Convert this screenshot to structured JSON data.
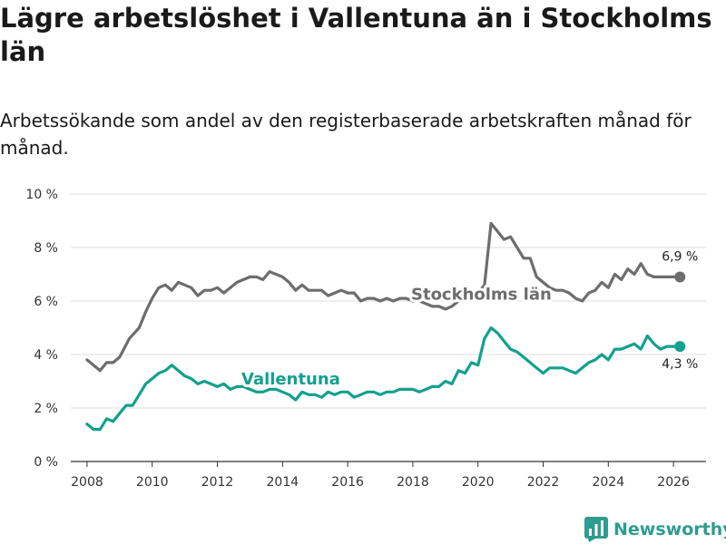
{
  "header": {
    "title": "Lägre arbetslöshet i Vallentuna än i Stockholms län",
    "subtitle": "Arbetssökande som andel av den registerbaserade arbetskraften månad för månad."
  },
  "brand": {
    "name": "Newsworthy",
    "icon": "newsworthy-logo-icon",
    "color": "#2e9c8f"
  },
  "colors": {
    "stockholm": "#6d6d6d",
    "vallentuna": "#13a08f",
    "grid": "#dddddd",
    "axis": "#333333"
  },
  "chart_data": {
    "type": "line",
    "title": "Lägre arbetslöshet i Vallentuna än i Stockholms län",
    "subtitle": "Arbetssökande som andel av den registerbaserade arbetskraften månad för månad.",
    "xlabel": "",
    "ylabel": "",
    "xlim": [
      2007.5,
      2027.0
    ],
    "ylim": [
      0,
      10
    ],
    "grid": true,
    "x_ticks": [
      2008,
      2010,
      2012,
      2014,
      2016,
      2018,
      2020,
      2022,
      2024,
      2026
    ],
    "x_tick_labels": [
      "2008",
      "2010",
      "2012",
      "2014",
      "2016",
      "2018",
      "2020",
      "2022",
      "2024",
      "2026"
    ],
    "y_ticks": [
      0,
      2,
      4,
      6,
      8,
      10
    ],
    "y_tick_labels": [
      "0 %",
      "2 %",
      "4 %",
      "6 %",
      "8 %",
      "10 %"
    ],
    "series": [
      {
        "name": "Stockholms län",
        "color": "#6d6d6d",
        "end_label": "6,9 %",
        "x": [
          2008.0,
          2008.4,
          2008.6,
          2008.8,
          2009.0,
          2009.3,
          2009.6,
          2009.8,
          2010.0,
          2010.2,
          2010.4,
          2010.6,
          2010.8,
          2011.0,
          2011.2,
          2011.4,
          2011.6,
          2011.8,
          2012.0,
          2012.2,
          2012.4,
          2012.6,
          2012.8,
          2013.0,
          2013.2,
          2013.4,
          2013.6,
          2013.8,
          2014.0,
          2014.2,
          2014.4,
          2014.6,
          2014.8,
          2015.0,
          2015.2,
          2015.4,
          2015.6,
          2015.8,
          2016.0,
          2016.2,
          2016.4,
          2016.6,
          2016.8,
          2017.0,
          2017.2,
          2017.4,
          2017.6,
          2017.8,
          2018.0,
          2018.2,
          2018.4,
          2018.6,
          2018.8,
          2019.0,
          2019.2,
          2019.4,
          2019.6,
          2019.8,
          2020.0,
          2020.2,
          2020.4,
          2020.6,
          2020.8,
          2021.0,
          2021.2,
          2021.4,
          2021.6,
          2021.8,
          2022.0,
          2022.2,
          2022.4,
          2022.6,
          2022.8,
          2023.0,
          2023.2,
          2023.4,
          2023.6,
          2023.8,
          2024.0,
          2024.2,
          2024.4,
          2024.6,
          2024.8,
          2025.0,
          2025.2,
          2025.4,
          2025.6,
          2025.8,
          2026.0,
          2026.2
        ],
        "y": [
          3.8,
          3.4,
          3.7,
          3.7,
          3.9,
          4.6,
          5.0,
          5.6,
          6.1,
          6.5,
          6.6,
          6.4,
          6.7,
          6.6,
          6.5,
          6.2,
          6.4,
          6.4,
          6.5,
          6.3,
          6.5,
          6.7,
          6.8,
          6.9,
          6.9,
          6.8,
          7.1,
          7.0,
          6.9,
          6.7,
          6.4,
          6.6,
          6.4,
          6.4,
          6.4,
          6.2,
          6.3,
          6.4,
          6.3,
          6.3,
          6.0,
          6.1,
          6.1,
          6.0,
          6.1,
          6.0,
          6.1,
          6.1,
          6.0,
          6.0,
          5.9,
          5.8,
          5.8,
          5.7,
          5.8,
          6.0,
          6.2,
          6.4,
          6.3,
          6.6,
          8.9,
          8.6,
          8.3,
          8.4,
          8.0,
          7.6,
          7.6,
          6.9,
          6.7,
          6.5,
          6.4,
          6.4,
          6.3,
          6.1,
          6.0,
          6.3,
          6.4,
          6.7,
          6.5,
          7.0,
          6.8,
          7.2,
          7.0,
          7.4,
          7.0,
          6.9,
          6.9,
          6.9,
          6.9,
          6.9
        ]
      },
      {
        "name": "Vallentuna",
        "color": "#13a08f",
        "end_label": "4,3 %",
        "x": [
          2008.0,
          2008.2,
          2008.4,
          2008.6,
          2008.8,
          2009.0,
          2009.2,
          2009.4,
          2009.6,
          2009.8,
          2010.0,
          2010.2,
          2010.4,
          2010.6,
          2010.8,
          2011.0,
          2011.2,
          2011.4,
          2011.6,
          2011.8,
          2012.0,
          2012.2,
          2012.4,
          2012.6,
          2012.8,
          2013.0,
          2013.2,
          2013.4,
          2013.6,
          2013.8,
          2014.0,
          2014.2,
          2014.4,
          2014.6,
          2014.8,
          2015.0,
          2015.2,
          2015.4,
          2015.6,
          2015.8,
          2016.0,
          2016.2,
          2016.4,
          2016.6,
          2016.8,
          2017.0,
          2017.2,
          2017.4,
          2017.6,
          2017.8,
          2018.0,
          2018.2,
          2018.4,
          2018.6,
          2018.8,
          2019.0,
          2019.2,
          2019.4,
          2019.6,
          2019.8,
          2020.0,
          2020.2,
          2020.4,
          2020.6,
          2020.8,
          2021.0,
          2021.2,
          2021.4,
          2021.6,
          2021.8,
          2022.0,
          2022.2,
          2022.4,
          2022.6,
          2022.8,
          2023.0,
          2023.2,
          2023.4,
          2023.6,
          2023.8,
          2024.0,
          2024.2,
          2024.4,
          2024.6,
          2024.8,
          2025.0,
          2025.2,
          2025.4,
          2025.6,
          2025.8,
          2026.0,
          2026.2
        ],
        "y": [
          1.4,
          1.2,
          1.2,
          1.6,
          1.5,
          1.8,
          2.1,
          2.1,
          2.5,
          2.9,
          3.1,
          3.3,
          3.4,
          3.6,
          3.4,
          3.2,
          3.1,
          2.9,
          3.0,
          2.9,
          2.8,
          2.9,
          2.7,
          2.8,
          2.8,
          2.7,
          2.6,
          2.6,
          2.7,
          2.7,
          2.6,
          2.5,
          2.3,
          2.6,
          2.5,
          2.5,
          2.4,
          2.6,
          2.5,
          2.6,
          2.6,
          2.4,
          2.5,
          2.6,
          2.6,
          2.5,
          2.6,
          2.6,
          2.7,
          2.7,
          2.7,
          2.6,
          2.7,
          2.8,
          2.8,
          3.0,
          2.9,
          3.4,
          3.3,
          3.7,
          3.6,
          4.6,
          5.0,
          4.8,
          4.5,
          4.2,
          4.1,
          3.9,
          3.7,
          3.5,
          3.3,
          3.5,
          3.5,
          3.5,
          3.4,
          3.3,
          3.5,
          3.7,
          3.8,
          4.0,
          3.8,
          4.2,
          4.2,
          4.3,
          4.4,
          4.2,
          4.7,
          4.4,
          4.2,
          4.3,
          4.3,
          4.3
        ]
      }
    ]
  }
}
